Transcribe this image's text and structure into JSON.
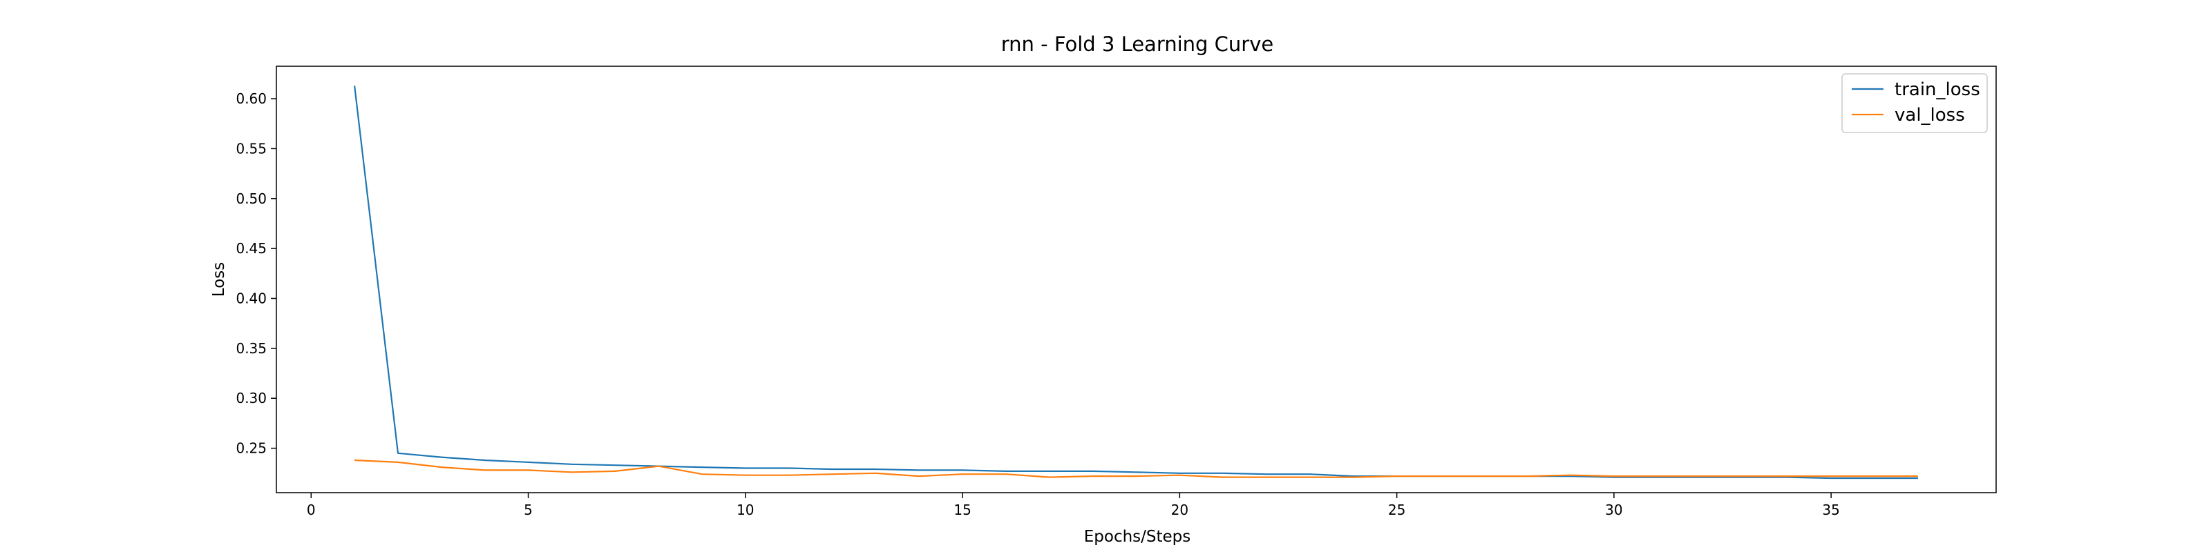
{
  "chart_data": {
    "type": "line",
    "title": "rnn - Fold 3 Learning Curve",
    "xlabel": "Epochs/Steps",
    "ylabel": "Loss",
    "xlim": [
      -0.8,
      38.8
    ],
    "ylim": [
      0.2055,
      0.6325
    ],
    "xticks": [
      0,
      5,
      10,
      15,
      20,
      25,
      30,
      35
    ],
    "yticks": [
      0.25,
      0.3,
      0.35,
      0.4,
      0.45,
      0.5,
      0.55,
      0.6
    ],
    "grid": false,
    "legend_position": "top-right",
    "x": [
      1,
      2,
      3,
      4,
      5,
      6,
      7,
      8,
      9,
      10,
      11,
      12,
      13,
      14,
      15,
      16,
      17,
      18,
      19,
      20,
      21,
      22,
      23,
      24,
      25,
      26,
      27,
      28,
      29,
      30,
      31,
      32,
      33,
      34,
      35,
      36,
      37
    ],
    "series": [
      {
        "name": "train_loss",
        "color": "#1f77b4",
        "values": [
          0.613,
          0.245,
          0.241,
          0.238,
          0.236,
          0.234,
          0.233,
          0.232,
          0.231,
          0.23,
          0.23,
          0.229,
          0.229,
          0.228,
          0.228,
          0.227,
          0.227,
          0.227,
          0.226,
          0.225,
          0.225,
          0.224,
          0.224,
          0.222,
          0.222,
          0.222,
          0.222,
          0.222,
          0.222,
          0.221,
          0.221,
          0.221,
          0.221,
          0.221,
          0.22,
          0.22,
          0.22
        ]
      },
      {
        "name": "val_loss",
        "color": "#ff7f0e",
        "values": [
          0.238,
          0.236,
          0.231,
          0.228,
          0.228,
          0.226,
          0.227,
          0.232,
          0.224,
          0.223,
          0.223,
          0.224,
          0.225,
          0.222,
          0.224,
          0.224,
          0.221,
          0.222,
          0.222,
          0.223,
          0.221,
          0.221,
          0.221,
          0.221,
          0.222,
          0.222,
          0.222,
          0.222,
          0.223,
          0.222,
          0.222,
          0.222,
          0.222,
          0.222,
          0.222,
          0.222,
          0.222
        ]
      }
    ]
  }
}
